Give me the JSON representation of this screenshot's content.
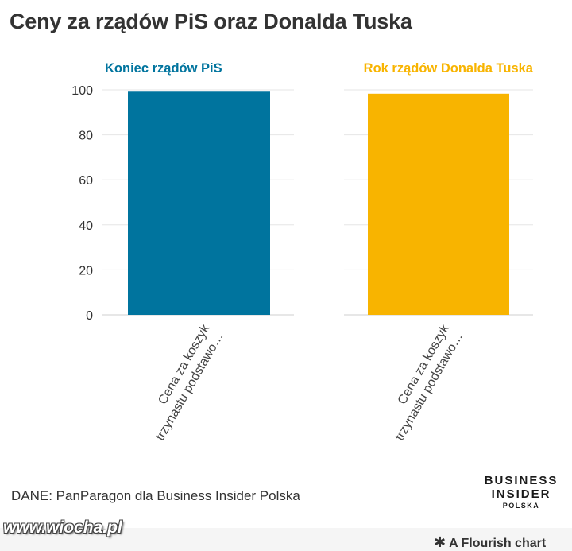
{
  "title": "Ceny za rządów PiS oraz Donalda Tuska",
  "source": "DANE: PanParagon dla Business Insider Polska",
  "logo": {
    "line1": "BUSINESS",
    "line2": "INSIDER",
    "line3": "POLSKA"
  },
  "watermark": "www.wiocha.pl",
  "credit": "A Flourish chart",
  "credit_icon": "flourish-star-icon",
  "colors": {
    "panel1": "#00749e",
    "panel2": "#f8b400",
    "title_text": "#333333"
  },
  "chart_data": [
    {
      "type": "bar",
      "title": "Koniec rządów PiS",
      "categories": [
        "Cena za koszyk trzynastu podstawo…"
      ],
      "category_lines": [
        "Cena za koszyk",
        "trzynastu podstawo…"
      ],
      "values": [
        99.2
      ],
      "ylim": [
        0,
        100
      ],
      "yticks": [
        0,
        20,
        40,
        60,
        80,
        100
      ],
      "color": "#00749e",
      "grid": true
    },
    {
      "type": "bar",
      "title": "Rok rządów Donalda Tuska",
      "categories": [
        "Cena za koszyk trzynastu podstawo…"
      ],
      "category_lines": [
        "Cena za koszyk",
        "trzynastu podstawo…"
      ],
      "values": [
        98.3
      ],
      "ylim": [
        0,
        100
      ],
      "yticks": [
        0,
        20,
        40,
        60,
        80,
        100
      ],
      "color": "#f8b400",
      "grid": true
    }
  ]
}
